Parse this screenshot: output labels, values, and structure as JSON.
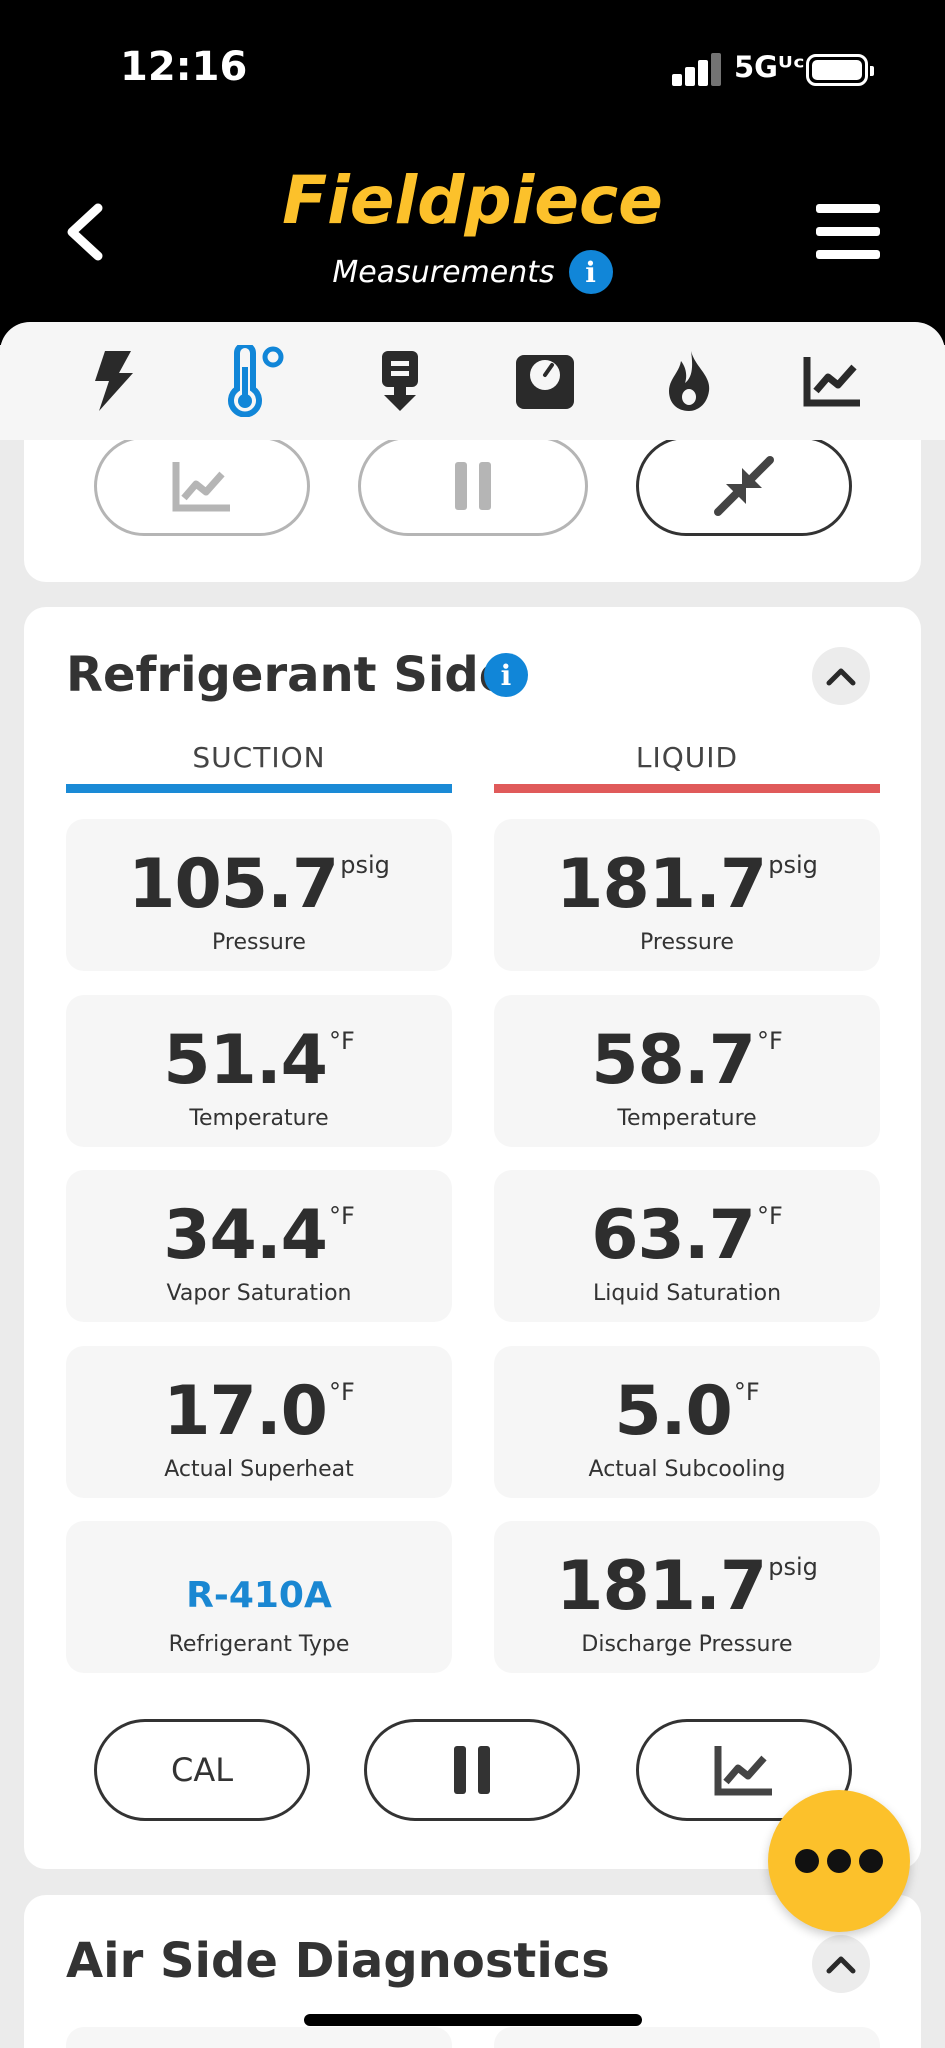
{
  "status_bar": {
    "time": "12:16",
    "network": "5Gᵁᶜ"
  },
  "header": {
    "brand": "Fieldpiece",
    "subtitle": "Measurements"
  },
  "toolbar": {
    "icons": [
      "bolt-icon",
      "thermometer-icon",
      "download-icon",
      "gauge-icon",
      "flame-icon",
      "chart-icon"
    ],
    "active_color": "#1186d8"
  },
  "top_card": {
    "buttons": [
      "chart-icon",
      "pause-icon",
      "compress-icon"
    ]
  },
  "refrigerant": {
    "title": "Refrigerant Side",
    "columns": [
      {
        "label": "SUCTION",
        "color": "#1a8ad6"
      },
      {
        "label": "LIQUID",
        "color": "#e05a5a"
      }
    ],
    "suction": [
      {
        "value": "105.7",
        "unit": "psig",
        "label": "Pressure"
      },
      {
        "value": "51.4",
        "unit": "°F",
        "label": "Temperature"
      },
      {
        "value": "34.4",
        "unit": "°F",
        "label": "Vapor Saturation"
      },
      {
        "value": "17.0",
        "unit": "°F",
        "label": "Actual Superheat"
      },
      {
        "value": "R-410A",
        "unit": "",
        "label": "Refrigerant Type"
      }
    ],
    "liquid": [
      {
        "value": "181.7",
        "unit": "psig",
        "label": "Pressure"
      },
      {
        "value": "58.7",
        "unit": "°F",
        "label": "Temperature"
      },
      {
        "value": "63.7",
        "unit": "°F",
        "label": "Liquid Saturation"
      },
      {
        "value": "5.0",
        "unit": "°F",
        "label": "Actual Subcooling"
      },
      {
        "value": "181.7",
        "unit": "psig",
        "label": "Discharge Pressure"
      }
    ],
    "buttons": {
      "cal": "CAL"
    }
  },
  "air_side": {
    "title": "Air Side Diagnostics"
  },
  "colors": {
    "brand_yellow": "#fcc12b",
    "info_blue": "#1186d8"
  }
}
